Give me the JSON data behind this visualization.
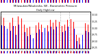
{
  "title": "Milwaukee/Waukesha, WI - Barometric Pressure",
  "subtitle": "Daily High/Low",
  "background_color": "#ffffff",
  "high_color": "#ff0000",
  "low_color": "#0000ff",
  "grid_color": "#cccccc",
  "highs": [
    30.42,
    30.38,
    30.32,
    30.18,
    30.38,
    30.05,
    30.41,
    30.35,
    30.12,
    29.98,
    30.02,
    29.88,
    30.08,
    30.18,
    30.1,
    30.22,
    30.08,
    30.28,
    30.18,
    30.28,
    30.22,
    30.05,
    30.12,
    30.28,
    30.32,
    30.22,
    29.72,
    29.62,
    29.98,
    30.15,
    30.12
  ],
  "lows": [
    30.08,
    30.05,
    29.95,
    29.88,
    30.05,
    29.72,
    30.1,
    30.02,
    29.82,
    29.68,
    29.72,
    29.58,
    29.8,
    29.92,
    29.82,
    29.98,
    29.85,
    30.02,
    29.92,
    30.02,
    29.95,
    29.82,
    29.88,
    30.02,
    30.08,
    29.95,
    29.48,
    29.35,
    29.72,
    29.88,
    29.82
  ],
  "x_labels": [
    "1",
    "2",
    "3",
    "4",
    "5",
    "6",
    "7",
    "8",
    "9",
    "10",
    "11",
    "12",
    "13",
    "14",
    "15",
    "16",
    "17",
    "18",
    "19",
    "20",
    "21",
    "22",
    "23",
    "24",
    "25",
    "26",
    "27",
    "28",
    "29",
    "30",
    "31"
  ],
  "ylim_min": 29.2,
  "ylim_max": 30.6,
  "y_ticks": [
    29.25,
    29.5,
    29.75,
    30.0,
    30.25,
    30.5
  ],
  "dashed_vlines_x": [
    20.5,
    23.5
  ],
  "n_days": 31
}
